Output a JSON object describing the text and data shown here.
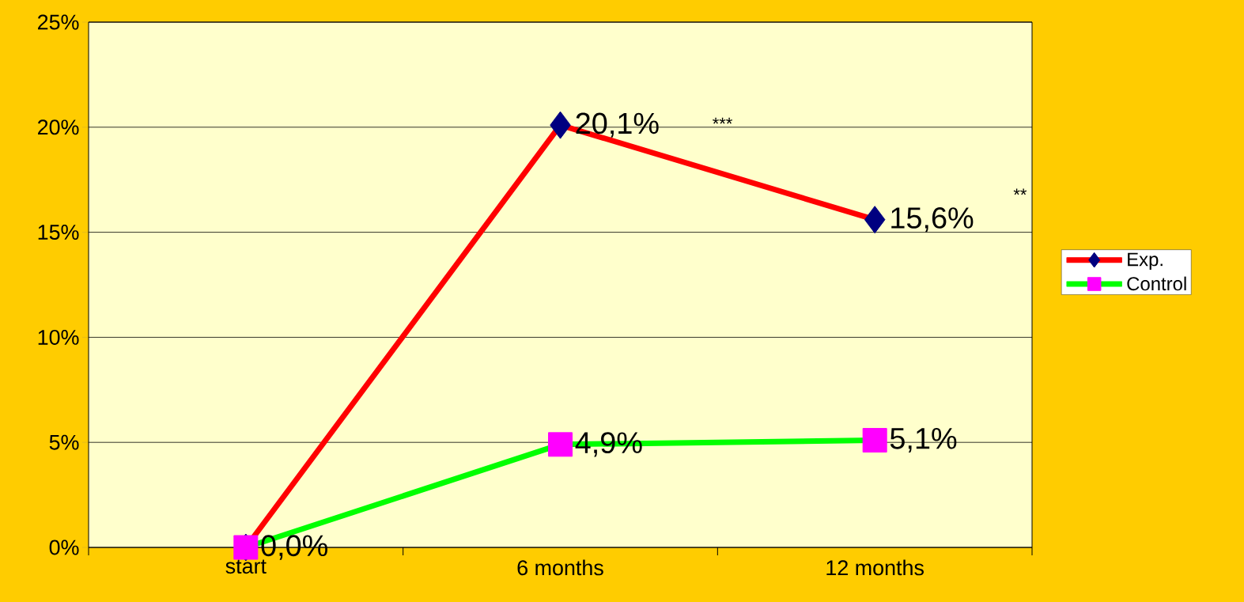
{
  "chart_data": {
    "type": "line",
    "categories": [
      "start",
      "6 months",
      "12 months"
    ],
    "series": [
      {
        "name": "Exp.",
        "color": "#ff0000",
        "colors": [
          "#000080",
          "#000080",
          "#000080"
        ],
        "marker": "diamond",
        "values": [
          0.0,
          20.1,
          15.6
        ],
        "value_labels": [
          null,
          "20,1%",
          "15,6%"
        ]
      },
      {
        "name": "Control",
        "color": "#00ff00",
        "colors": [
          "#ff00ff",
          "#ff00ff",
          "#ff00ff"
        ],
        "marker": "square",
        "values": [
          0.0,
          4.9,
          5.1
        ],
        "value_labels": [
          "0,0%",
          "4,9%",
          "5,1%"
        ]
      }
    ],
    "ylim": [
      0,
      25
    ],
    "yticks": [
      {
        "value": 0,
        "label": "0%"
      },
      {
        "value": 5,
        "label": "5%"
      },
      {
        "value": 10,
        "label": "10%"
      },
      {
        "value": 15,
        "label": "15%"
      },
      {
        "value": 20,
        "label": "20%"
      },
      {
        "value": 25,
        "label": "25%"
      }
    ],
    "annotations": [
      "***",
      "**"
    ],
    "grid": "y",
    "legend": "right",
    "line_style": "solid"
  }
}
